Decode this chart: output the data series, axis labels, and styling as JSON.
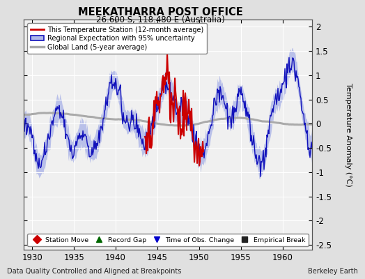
{
  "title": "MEEKATHARRA POST OFFICE",
  "subtitle": "26.600 S, 118.480 E (Australia)",
  "xlabel_bottom": "Data Quality Controlled and Aligned at Breakpoints",
  "xlabel_right": "Berkeley Earth",
  "ylabel": "Temperature Anomaly (°C)",
  "xlim": [
    1929.0,
    1963.5
  ],
  "ylim": [
    -2.6,
    2.15
  ],
  "yticks": [
    -2.5,
    -2.0,
    -1.5,
    -1.0,
    -0.5,
    0.0,
    0.5,
    1.0,
    1.5,
    2.0
  ],
  "ytick_labels": [
    "-2.5",
    "-2",
    "-1.5",
    "-1",
    "-0.5",
    "0",
    "0.5",
    "1",
    "1.5",
    "2"
  ],
  "xticks": [
    1930,
    1935,
    1940,
    1945,
    1950,
    1955,
    1960
  ],
  "bg_color": "#e0e0e0",
  "plot_bg_color": "#f0f0f0",
  "grid_color": "#ffffff",
  "station_color": "#cc0000",
  "regional_color": "#1111bb",
  "regional_fill_color": "#b0b8e8",
  "global_color": "#aaaaaa",
  "legend_items": [
    {
      "label": "This Temperature Station (12-month average)",
      "color": "#cc0000",
      "lw": 1.5
    },
    {
      "label": "Regional Expectation with 95% uncertainty",
      "color": "#1111bb",
      "fill": "#b0b8e8"
    },
    {
      "label": "Global Land (5-year average)",
      "color": "#aaaaaa",
      "lw": 2.5
    }
  ],
  "bottom_legend": [
    {
      "marker": "D",
      "color": "#cc0000",
      "label": "Station Move"
    },
    {
      "marker": "^",
      "color": "#006600",
      "label": "Record Gap"
    },
    {
      "marker": "v",
      "color": "#0000cc",
      "label": "Time of Obs. Change"
    },
    {
      "marker": "s",
      "color": "#222222",
      "label": "Empirical Break"
    }
  ]
}
